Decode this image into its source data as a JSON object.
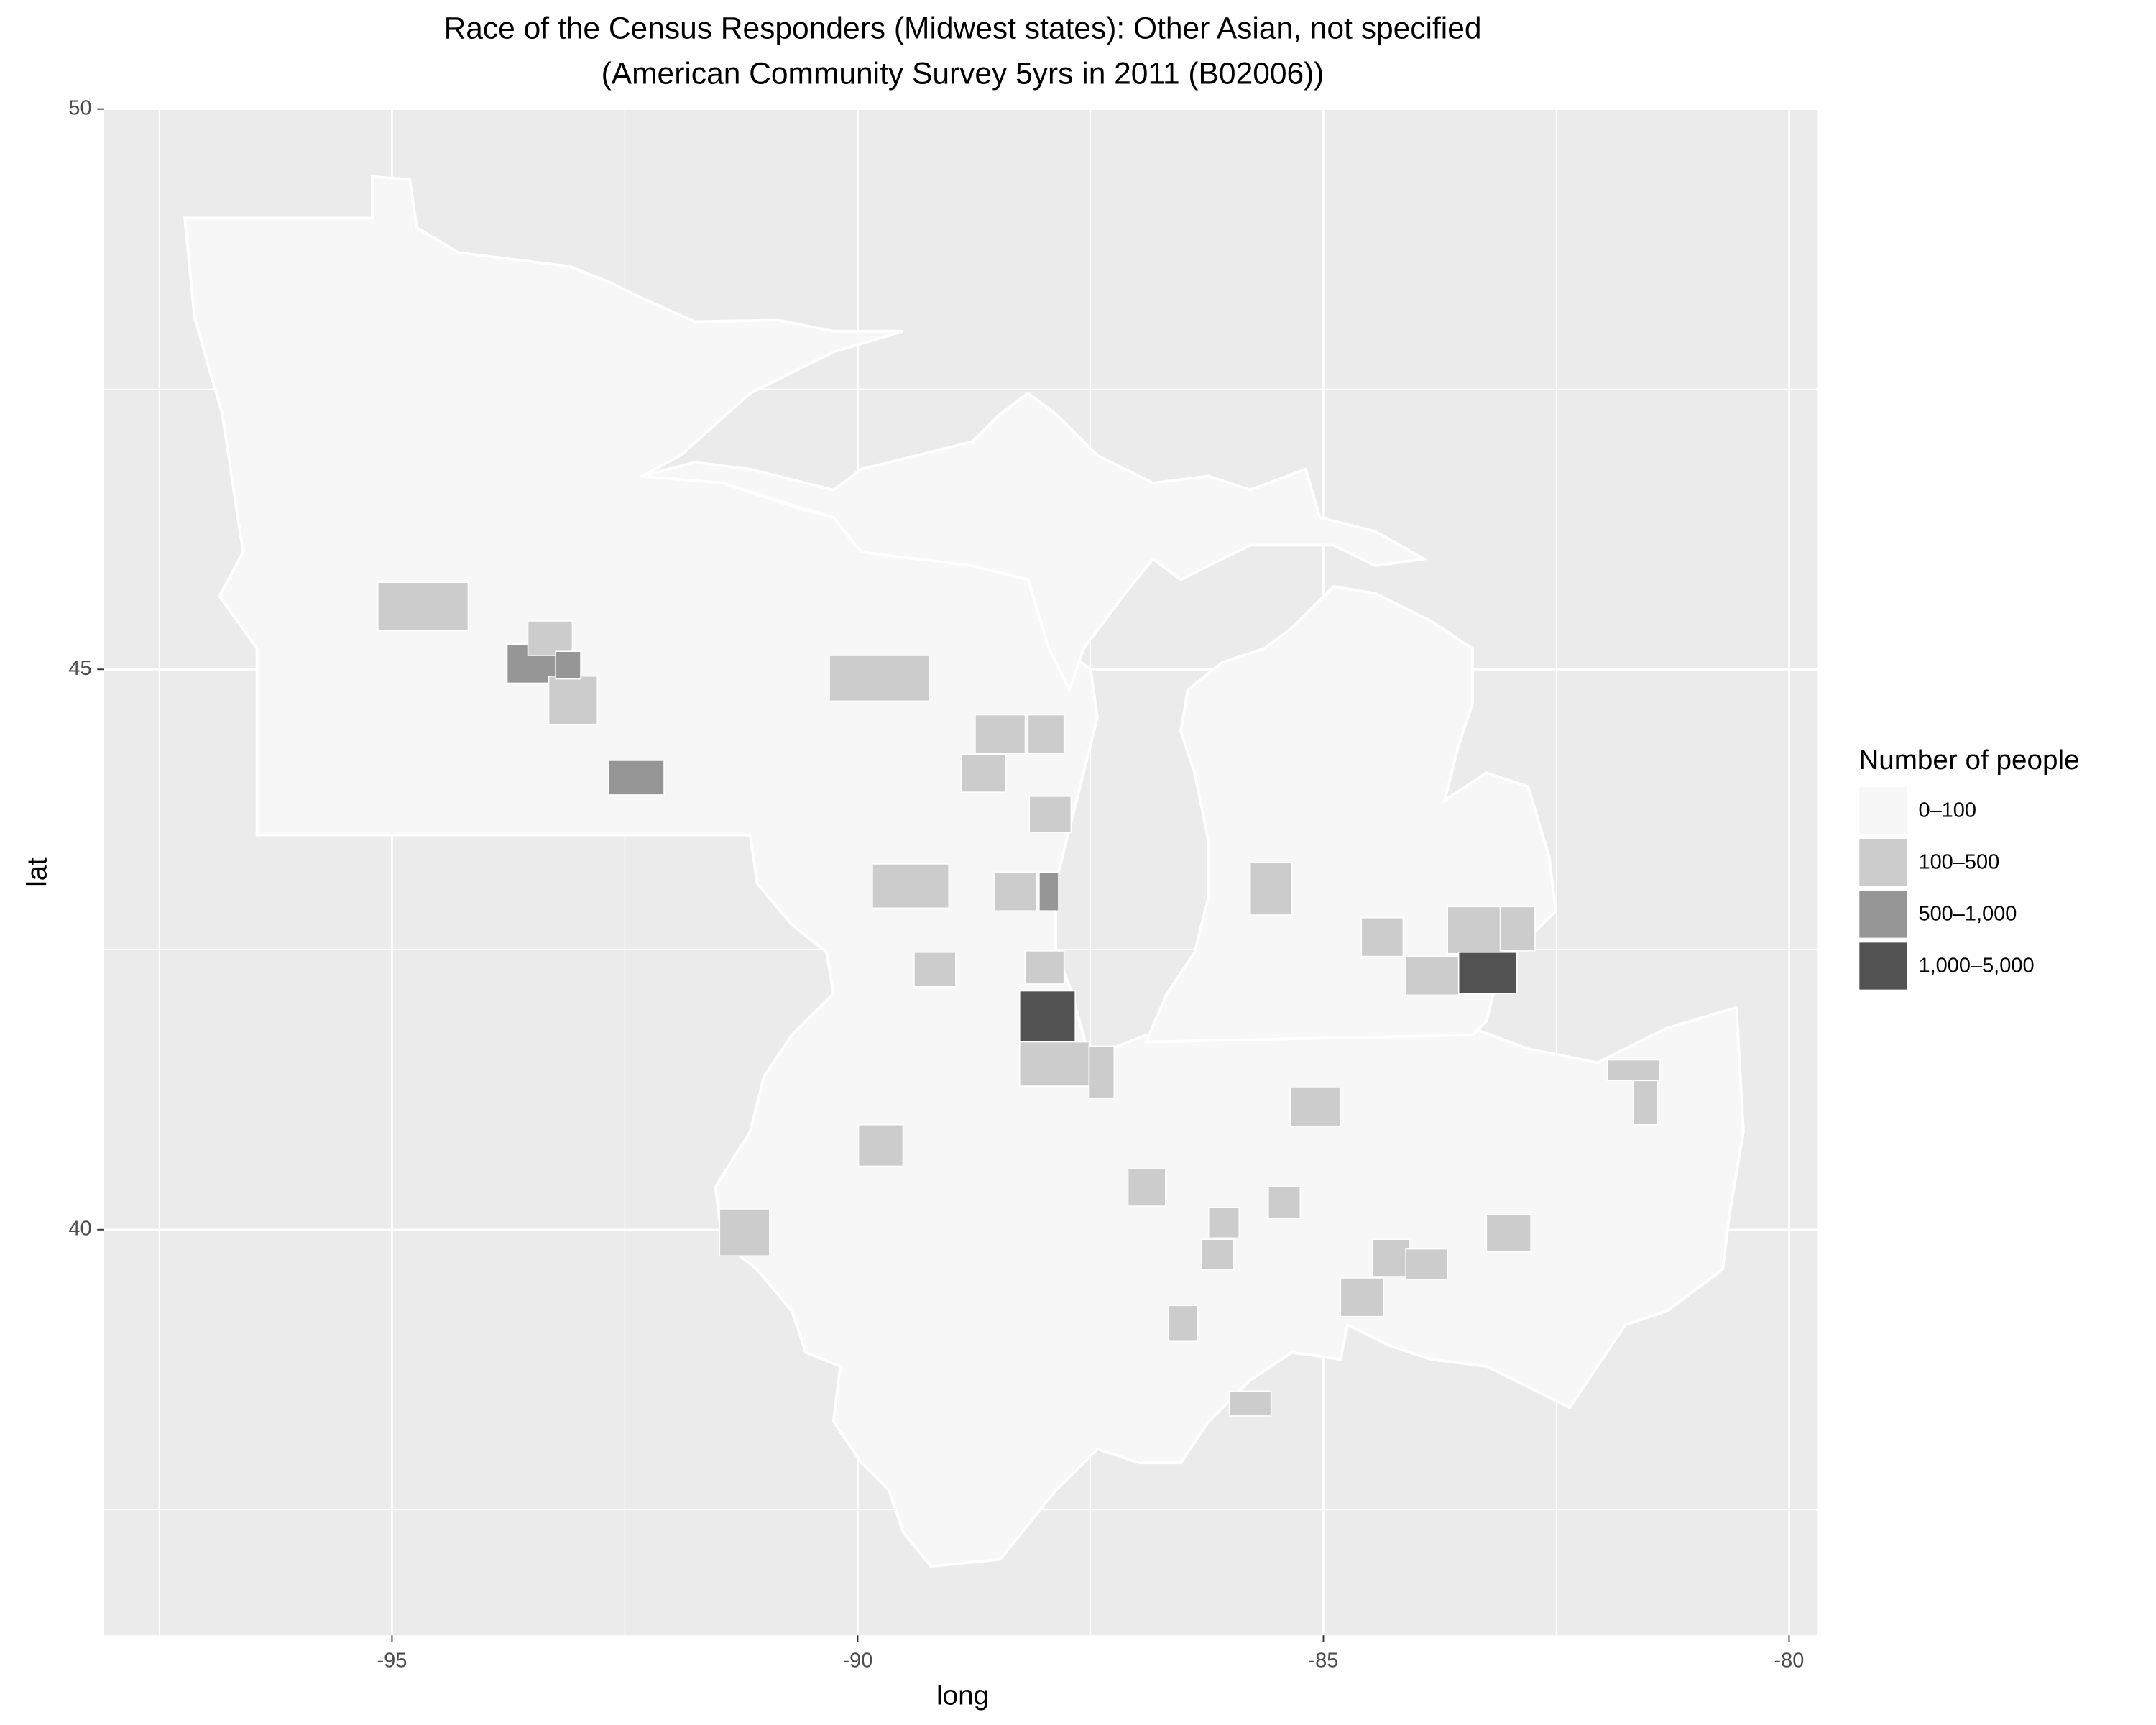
{
  "chart_data": {
    "type": "choropleth",
    "title": [
      "Race of the Census Responders (Midwest states): Other Asian, not specified",
      "(American Community Survey 5yrs in 2011 (B02006))"
    ],
    "x_label": "long",
    "y_label": "lat",
    "xlim": [
      -98.09,
      -79.7
    ],
    "ylim": [
      36.38,
      50
    ],
    "xticks": [
      -95,
      -90,
      -85,
      -80
    ],
    "yticks": [
      40,
      45,
      50
    ],
    "grid": true,
    "legend_title": "Number of people",
    "legend": [
      {
        "label": "0–100",
        "color": "#f7f7f7"
      },
      {
        "label": "100–500",
        "color": "#cccccc"
      },
      {
        "label": "500–1,000",
        "color": "#969696"
      },
      {
        "label": "1,000–5,000",
        "color": "#525252"
      }
    ]
  }
}
